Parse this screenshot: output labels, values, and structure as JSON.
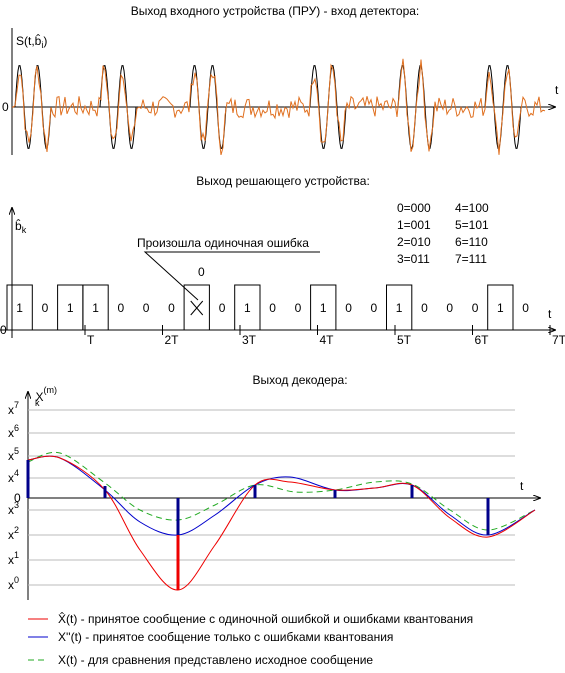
{
  "panel1": {
    "title": "Выход входного устройства (ПРУ) - вход детектора:",
    "y_label": "S(t,b̂",
    "y_label_sub": "i",
    "y_label_end": ")",
    "origin": "0",
    "x_label": "t"
  },
  "panel2": {
    "title": "Выход решающего устройства:",
    "y_label": "b̂",
    "y_label_sub": "k",
    "annotation": "Произошла одиночная ошибка",
    "corrected": "0",
    "bits": [
      "1",
      "0",
      "1",
      "1",
      "0",
      "0",
      "0",
      null,
      "0",
      "1",
      "0",
      "0",
      "1",
      "0",
      "0",
      "1",
      "0",
      "0",
      "0",
      "1",
      "0"
    ],
    "periods": [
      "T",
      "2T",
      "3T",
      "4T",
      "5T",
      "6T",
      "7T"
    ],
    "origin": "0",
    "x_label": "t",
    "codes": [
      "0=000",
      "4=100",
      "1=001",
      "5=101",
      "2=010",
      "6=110",
      "3=011",
      "7=111"
    ]
  },
  "panel3": {
    "title": "Выход декодера:",
    "y_label": "X",
    "y_label_sup": "(m)",
    "y_label_sub": "k",
    "levels": [
      {
        "base": "x",
        "sup": "7"
      },
      {
        "base": "x",
        "sup": "6"
      },
      {
        "base": "x",
        "sup": "5"
      },
      {
        "base": "x",
        "sup": "4"
      },
      {
        "base": "x",
        "sup": "3"
      },
      {
        "base": "x",
        "sup": "2"
      },
      {
        "base": "x",
        "sup": "1"
      },
      {
        "base": "x",
        "sup": "0"
      }
    ],
    "origin": "0",
    "x_label": "t",
    "legend": [
      "X̂(t) - принятое сообщение с одиночной ошибкой и ошибками квантования",
      "X''(t) - принятое сообщение только с ошибками квантования",
      "X(t) - для сравнения представлено исходное сообщение"
    ]
  }
}
